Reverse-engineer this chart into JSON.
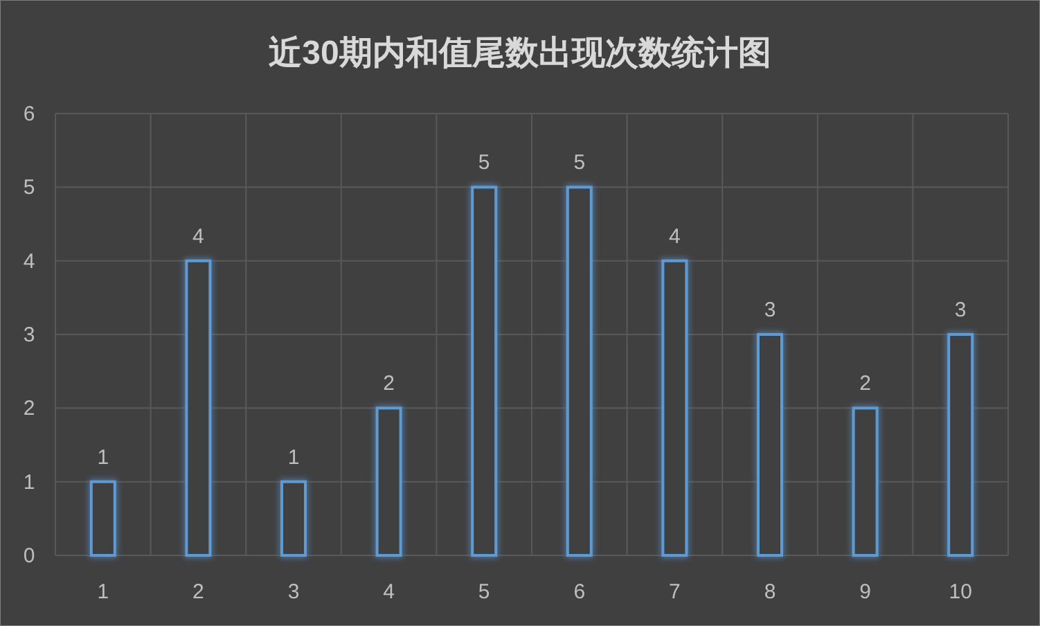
{
  "chart_data": {
    "type": "bar",
    "title": "近30期内和值尾数出现次数统计图",
    "categories": [
      "1",
      "2",
      "3",
      "4",
      "5",
      "6",
      "7",
      "8",
      "9",
      "10"
    ],
    "values": [
      1,
      4,
      1,
      2,
      5,
      5,
      4,
      3,
      2,
      3
    ],
    "color": "#5b9bd5",
    "ylim": [
      0,
      6
    ],
    "yticks": [
      0,
      1,
      2,
      3,
      4,
      5,
      6
    ],
    "grid": true,
    "data_labels": true
  }
}
